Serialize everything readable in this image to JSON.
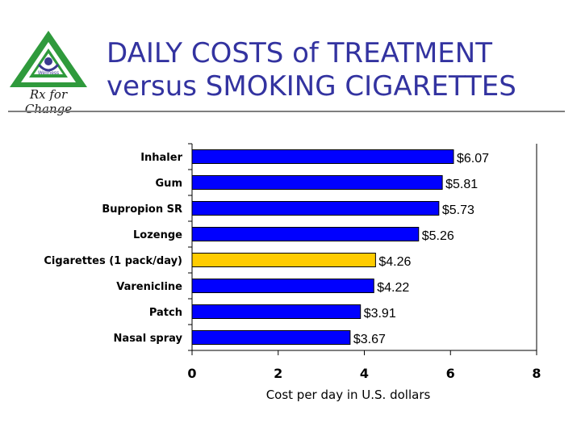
{
  "slide": {
    "title_line1": "DAILY COSTS of TREATMENT",
    "title_line2": "versus SMOKING CIGARETTES",
    "logo_text": "Rx for Change",
    "logo_small_text": "Wellness"
  },
  "colors": {
    "title": "#3333a0",
    "bar_default": "#0000ff",
    "bar_highlight": "#ffcc00",
    "bar_outline": "#000000",
    "logo_green": "#2f9a3c"
  },
  "chart_data": {
    "type": "bar",
    "orientation": "horizontal",
    "categories": [
      "Inhaler",
      "Gum",
      "Bupropion SR",
      "Lozenge",
      "Cigarettes (1 pack/day)",
      "Varenicline",
      "Patch",
      "Nasal spray"
    ],
    "values": [
      6.07,
      5.81,
      5.73,
      5.26,
      4.26,
      4.22,
      3.91,
      3.67
    ],
    "data_labels": [
      "$6.07",
      "$5.81",
      "$5.73",
      "$5.26",
      "$4.26",
      "$4.22",
      "$3.91",
      "$3.67"
    ],
    "highlight_category": "Cigarettes (1 pack/day)",
    "xlabel": "Cost per day in U.S. dollars",
    "xlim": [
      0,
      8
    ],
    "xticks": [
      "0",
      "2",
      "4",
      "6",
      "8"
    ],
    "grid": false,
    "legend": "none"
  }
}
